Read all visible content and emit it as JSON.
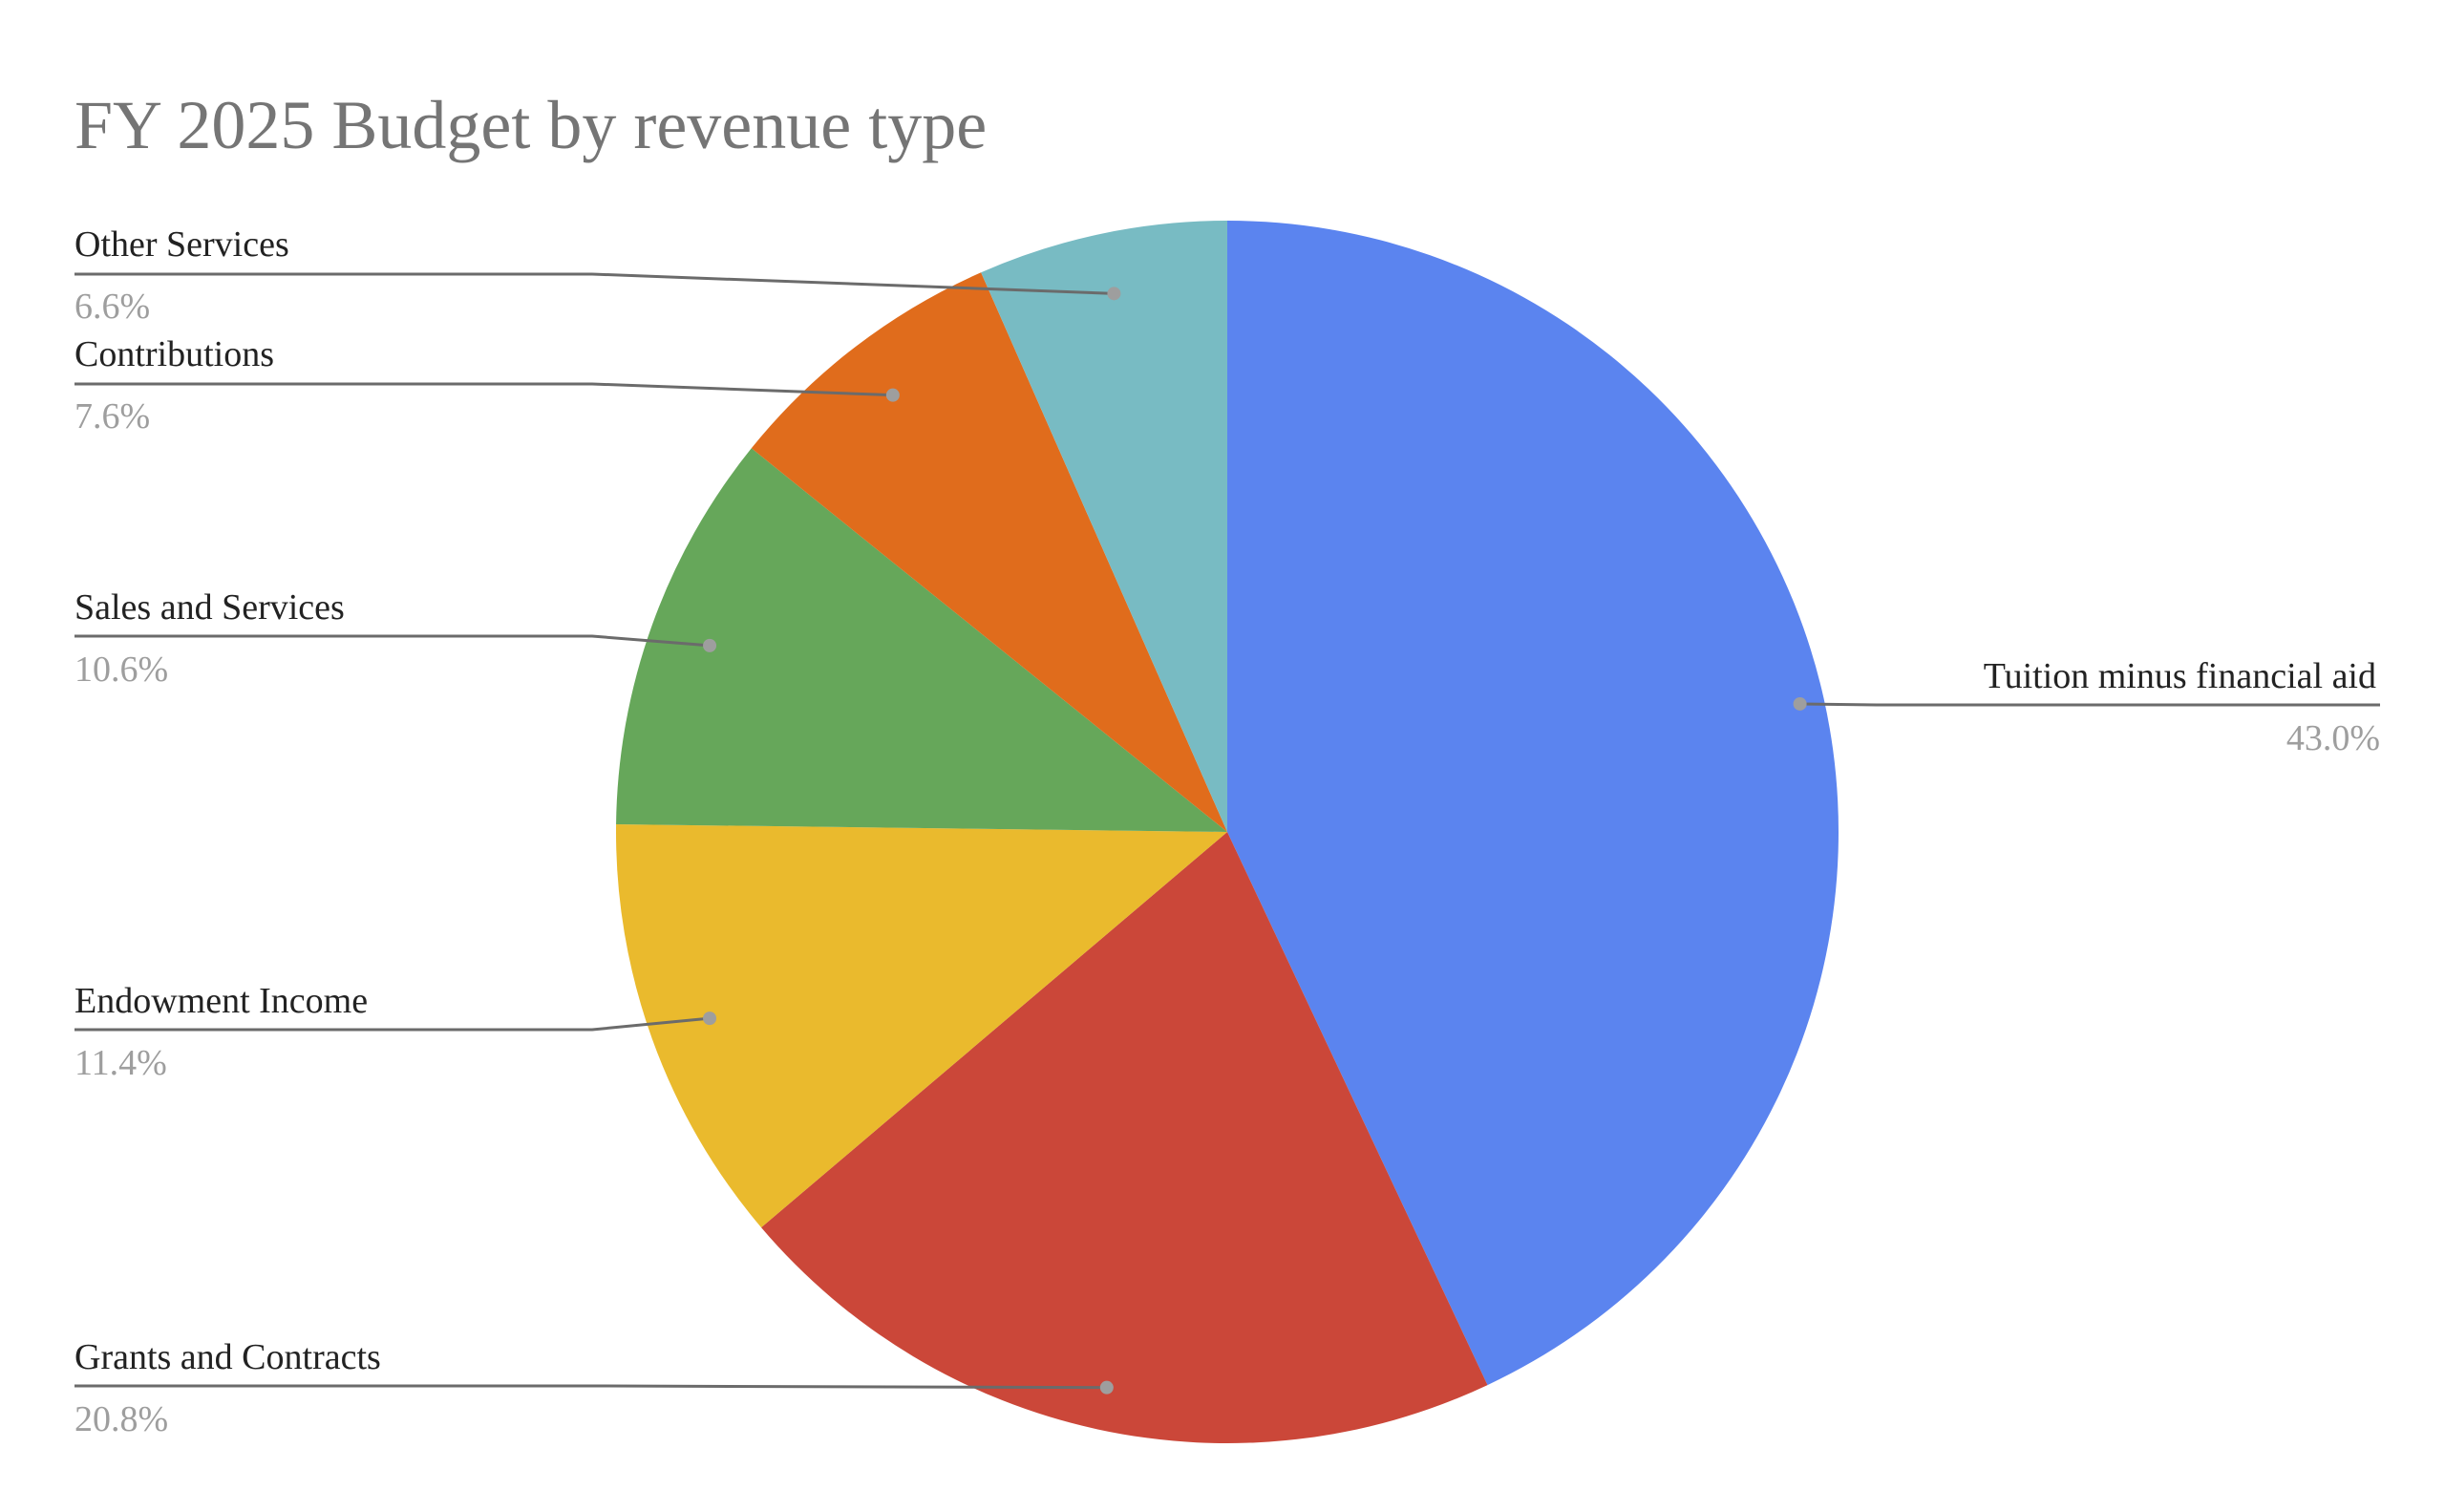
{
  "chart_data": {
    "type": "pie",
    "title": "FY 2025 Budget by revenue type",
    "slices": [
      {
        "label": "Tuition minus financial aid",
        "value": 43.0,
        "value_label": "43.0%",
        "color": "#5b84ef"
      },
      {
        "label": "Grants and Contracts",
        "value": 20.8,
        "value_label": "20.8%",
        "color": "#cb4739"
      },
      {
        "label": "Endowment Income",
        "value": 11.4,
        "value_label": "11.4%",
        "color": "#eaba2d"
      },
      {
        "label": "Sales and Services",
        "value": 10.6,
        "value_label": "10.6%",
        "color": "#66a75a"
      },
      {
        "label": "Contributions",
        "value": 7.6,
        "value_label": "7.6%",
        "color": "#e06c1c"
      },
      {
        "label": "Other Services",
        "value": 6.6,
        "value_label": "6.6%",
        "color": "#78bbc3"
      }
    ],
    "start": "top",
    "direction": "clockwise",
    "legend": "none"
  }
}
